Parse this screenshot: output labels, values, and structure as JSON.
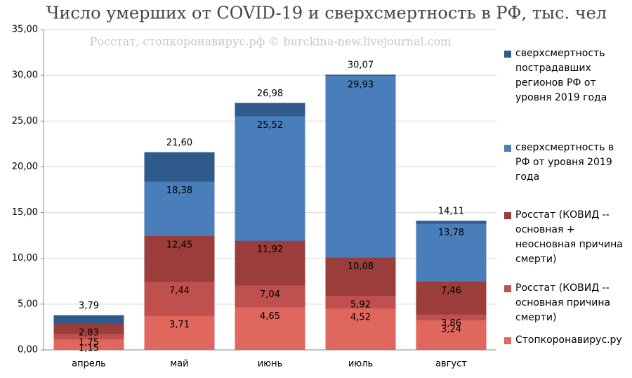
{
  "chart_data": {
    "type": "bar",
    "overlap": true,
    "title": "Число умерших от COVID-19 и сверхсмертность в РФ, тыс. чел",
    "subtitle": "Росстат, стопкоронавирус.рф © burckina-new.livejournal.com",
    "categories": [
      "апрель",
      "май",
      "июнь",
      "июль",
      "август"
    ],
    "series": [
      {
        "name": "сверхсмертность пострадавших регионов РФ от уровня 2019 года",
        "color": "#2f5b8c",
        "values": [
          3.79,
          21.6,
          26.98,
          30.07,
          14.11
        ],
        "value_labels": [
          "3,79",
          "21,60",
          "26,98",
          "30,07",
          "14,11"
        ]
      },
      {
        "name": "сверхсмертность в РФ от уровня 2019 года",
        "color": "#4a7ebb",
        "values": [
          null,
          18.38,
          25.52,
          29.93,
          13.78
        ],
        "value_labels": [
          null,
          "18,38",
          "25,52",
          "29,93",
          "13,78"
        ]
      },
      {
        "name": "Росстат (КОВИД -- основная + неосновная причина смерти)",
        "color": "#9b3d3a",
        "values": [
          2.83,
          12.45,
          11.92,
          10.08,
          7.46
        ],
        "value_labels": [
          "2,83",
          "12,45",
          "11,92",
          "10,08",
          "7,46"
        ]
      },
      {
        "name": "Росстат (КОВИД -- основная причина смерти)",
        "color": "#c0504d",
        "values": [
          1.75,
          7.44,
          7.04,
          5.92,
          3.86
        ],
        "value_labels": [
          "1,75",
          "7,44",
          "7,04",
          "5,92",
          "3,86"
        ]
      },
      {
        "name": "Стопкоронавирус.ру",
        "color": "#e0675e",
        "values": [
          1.15,
          3.71,
          4.65,
          4.52,
          3.24
        ],
        "value_labels": [
          "1,15",
          "3,71",
          "4,65",
          "4,52",
          "3,24"
        ]
      }
    ],
    "ylim": [
      0,
      35
    ],
    "yticks": [
      {
        "value": 0,
        "label": "0,00"
      },
      {
        "value": 5,
        "label": "5,00"
      },
      {
        "value": 10,
        "label": "10,00"
      },
      {
        "value": 15,
        "label": "15,00"
      },
      {
        "value": 20,
        "label": "20,00"
      },
      {
        "value": 25,
        "label": "25,00"
      },
      {
        "value": 30,
        "label": "30,00"
      },
      {
        "value": 35,
        "label": "35,00"
      }
    ],
    "grid": true,
    "legend": "right"
  }
}
